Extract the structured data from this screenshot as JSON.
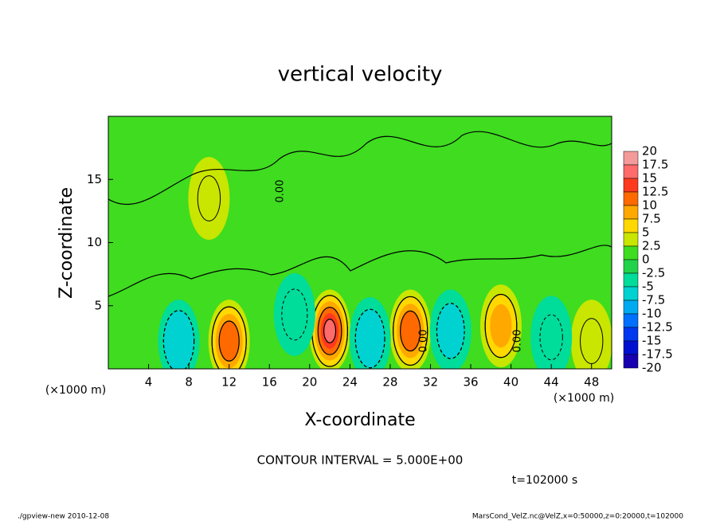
{
  "chart_data": {
    "type": "contour",
    "title": "vertical velocity",
    "x_label": "X-coordinate",
    "y_label": "Z-coordinate",
    "x_unit_left": "(×1000 m)",
    "x_unit_right": "(×1000 m)",
    "xlim": [
      0,
      50
    ],
    "xticks": [
      4,
      8,
      12,
      16,
      20,
      24,
      28,
      32,
      36,
      40,
      44,
      48
    ],
    "ylim": [
      0,
      20
    ],
    "yticks": [
      5,
      10,
      15
    ],
    "extrema": {
      "x": [
        12,
        22,
        30,
        39,
        7,
        26,
        18.5,
        34,
        48,
        10,
        44
      ],
      "z": [
        2.2,
        3.0,
        3.0,
        3.4,
        2.2,
        2.4,
        4.3,
        3.0,
        2.2,
        13.5,
        2.5
      ],
      "values": [
        12,
        15,
        12,
        8,
        -7,
        -6,
        -4,
        -5,
        3,
        3,
        -3
      ]
    },
    "colorbar": {
      "levels": [
        20,
        17.5,
        15,
        12.5,
        10,
        7.5,
        5,
        2.5,
        0,
        -2.5,
        -5,
        -7.5,
        -10,
        -12.5,
        -15,
        -17.5,
        -20
      ],
      "colors": [
        "#f49a9a",
        "#ff6a6a",
        "#ff3a1e",
        "#ff6a00",
        "#ffa800",
        "#ffd800",
        "#c8e600",
        "#3fdc20",
        "#22d24a",
        "#00dc9a",
        "#00d2d2",
        "#00aaf0",
        "#0070ff",
        "#0038f0",
        "#0010d0",
        "#1800b0"
      ]
    },
    "contour_labels": [
      "0.00",
      "0.00",
      "0.00"
    ],
    "contour_interval": "CONTOUR INTERVAL = 5.000E+00",
    "time_label": "t=102000 s",
    "footer_left": "./gpview-new  2010-12-08",
    "footer_right": "MarsCond_VelZ.nc@VelZ,x=0:50000,z=0:20000,t=102000"
  }
}
